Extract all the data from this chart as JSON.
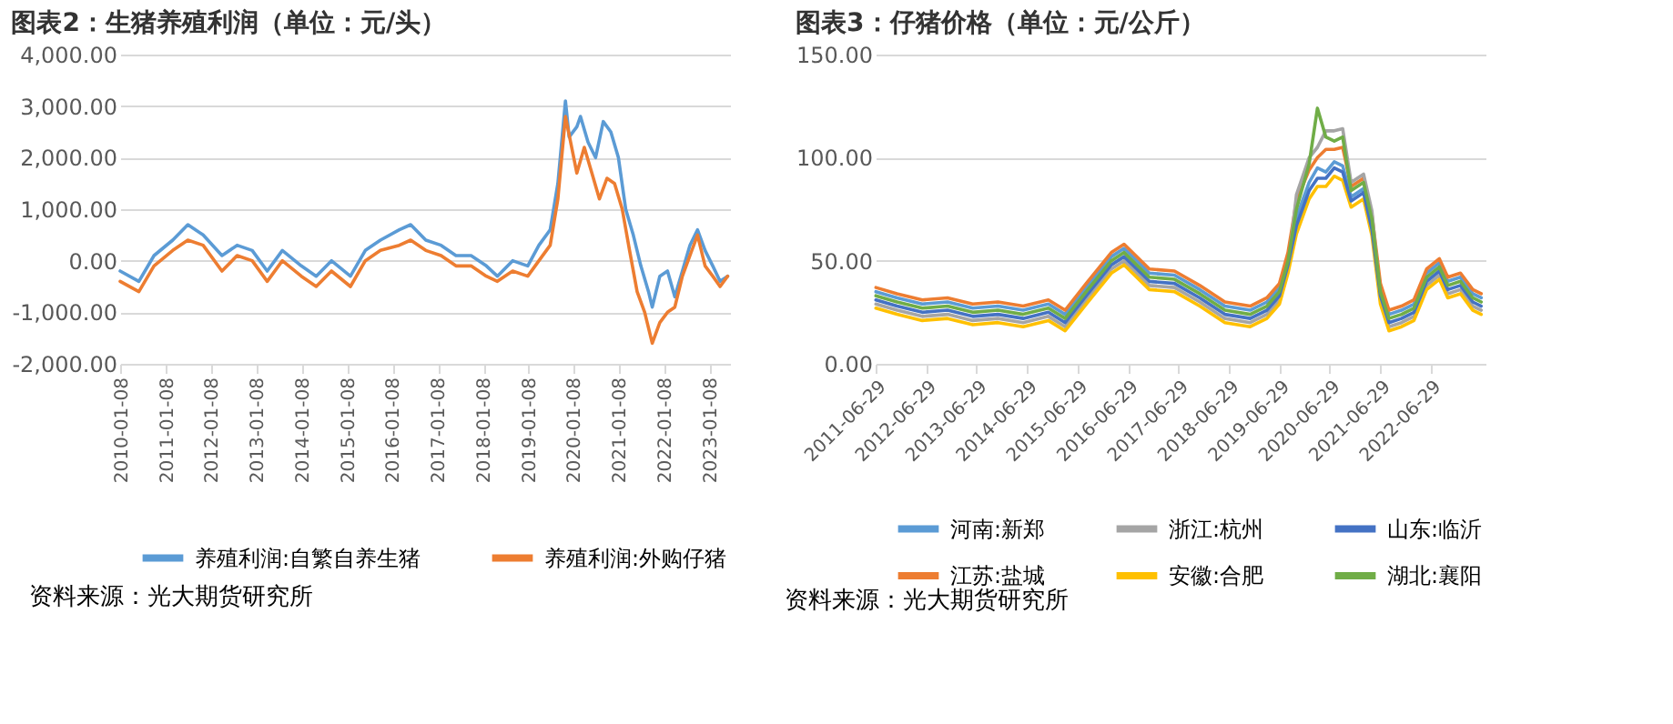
{
  "chart_data": [
    {
      "type": "line",
      "title": "图表2：生猪养殖利润（单位：元/头）",
      "annotations": [
        "资料来源：光大期货研究所"
      ],
      "legend": "bottom",
      "grid": "y",
      "line_style": "solid",
      "xlim": [
        "2010-01-01",
        "2023-06-20"
      ],
      "xticks": [
        "2010-01-08",
        "2011-01-08",
        "2012-01-08",
        "2013-01-08",
        "2014-01-08",
        "2015-01-08",
        "2016-01-08",
        "2017-01-08",
        "2018-01-08",
        "2019-01-08",
        "2020-01-08",
        "2021-01-08",
        "2022-01-08",
        "2023-01-08"
      ],
      "ylim": [
        -2000,
        4000
      ],
      "yticks": [
        {
          "value": -2000,
          "label": "-2,000.00"
        },
        {
          "value": -1000,
          "label": "-1,000.00"
        },
        {
          "value": 0,
          "label": "0.00"
        },
        {
          "value": 1000,
          "label": "1,000.00"
        },
        {
          "value": 2000,
          "label": "2,000.00"
        },
        {
          "value": 3000,
          "label": "3,000.00"
        },
        {
          "value": 4000,
          "label": "4,000.00"
        }
      ],
      "series": [
        {
          "name": "养殖利润:自繁自养生猪",
          "color": "#5b9bd5",
          "x": [
            "2010-01",
            "2010-06",
            "2010-10",
            "2011-03",
            "2011-07",
            "2011-11",
            "2012-04",
            "2012-08",
            "2012-12",
            "2013-04",
            "2013-08",
            "2014-01",
            "2014-05",
            "2014-09",
            "2015-02",
            "2015-06",
            "2015-10",
            "2016-03",
            "2016-06",
            "2016-10",
            "2017-02",
            "2017-06",
            "2017-10",
            "2018-02",
            "2018-05",
            "2018-09",
            "2019-01",
            "2019-04",
            "2019-07",
            "2019-09",
            "2019-11",
            "2019-12",
            "2020-02",
            "2020-03",
            "2020-05",
            "2020-07",
            "2020-09",
            "2020-11",
            "2021-01",
            "2021-03",
            "2021-05",
            "2021-07",
            "2021-09",
            "2021-10",
            "2021-12",
            "2022-02",
            "2022-04",
            "2022-06",
            "2022-08",
            "2022-10",
            "2022-12",
            "2023-02",
            "2023-04",
            "2023-06"
          ],
          "values": [
            -200,
            -400,
            100,
            400,
            700,
            500,
            100,
            300,
            200,
            -200,
            200,
            -100,
            -300,
            0,
            -300,
            200,
            400,
            600,
            700,
            400,
            300,
            100,
            100,
            -100,
            -300,
            0,
            -100,
            300,
            600,
            1500,
            3100,
            2400,
            2600,
            2800,
            2300,
            2000,
            2700,
            2500,
            2000,
            1000,
            500,
            -100,
            -600,
            -900,
            -300,
            -200,
            -700,
            -200,
            300,
            600,
            200,
            -100,
            -400,
            -300
          ]
        },
        {
          "name": "养殖利润:外购仔猪",
          "color": "#ed7d31",
          "x": [
            "2010-01",
            "2010-06",
            "2010-10",
            "2011-03",
            "2011-07",
            "2011-11",
            "2012-04",
            "2012-08",
            "2012-12",
            "2013-04",
            "2013-08",
            "2014-01",
            "2014-05",
            "2014-09",
            "2015-02",
            "2015-06",
            "2015-10",
            "2016-03",
            "2016-06",
            "2016-10",
            "2017-02",
            "2017-06",
            "2017-10",
            "2018-02",
            "2018-05",
            "2018-09",
            "2019-01",
            "2019-04",
            "2019-07",
            "2019-09",
            "2019-11",
            "2020-02",
            "2020-04",
            "2020-06",
            "2020-08",
            "2020-10",
            "2020-12",
            "2021-02",
            "2021-04",
            "2021-06",
            "2021-08",
            "2021-10",
            "2021-12",
            "2022-02",
            "2022-04",
            "2022-06",
            "2022-08",
            "2022-10",
            "2022-12",
            "2023-02",
            "2023-04",
            "2023-06"
          ],
          "values": [
            -400,
            -600,
            -100,
            200,
            400,
            300,
            -200,
            100,
            0,
            -400,
            0,
            -300,
            -500,
            -200,
            -500,
            0,
            200,
            300,
            400,
            200,
            100,
            -100,
            -100,
            -300,
            -400,
            -200,
            -300,
            0,
            300,
            1200,
            2800,
            1700,
            2200,
            1700,
            1200,
            1600,
            1500,
            1000,
            200,
            -600,
            -1000,
            -1600,
            -1200,
            -1000,
            -900,
            -300,
            100,
            500,
            -100,
            -300,
            -500,
            -300
          ]
        }
      ]
    },
    {
      "type": "line",
      "title": "图表3：仔猪价格（单位：元/公斤）",
      "annotations": [
        "资料来源：光大期货研究所"
      ],
      "legend": "bottom",
      "grid": "y",
      "line_style": "solid",
      "xlim": [
        "2011-06-29",
        "2023-08-01"
      ],
      "xticks": [
        "2011-06-29",
        "2012-06-29",
        "2013-06-29",
        "2014-06-29",
        "2015-06-29",
        "2016-06-29",
        "2017-06-29",
        "2018-06-29",
        "2019-06-29",
        "2020-06-29",
        "2021-06-29",
        "2022-06-29"
      ],
      "ylim": [
        0,
        150
      ],
      "yticks": [
        {
          "value": 0,
          "label": "0.00"
        },
        {
          "value": 50,
          "label": "50.00"
        },
        {
          "value": 100,
          "label": "100.00"
        },
        {
          "value": 150,
          "label": "150.00"
        }
      ],
      "x": [
        "2011-07",
        "2011-12",
        "2012-06",
        "2012-12",
        "2013-06",
        "2013-12",
        "2014-06",
        "2014-12",
        "2015-04",
        "2015-09",
        "2016-03",
        "2016-06",
        "2016-12",
        "2017-06",
        "2017-12",
        "2018-06",
        "2018-12",
        "2019-04",
        "2019-07",
        "2019-09",
        "2019-11",
        "2020-02",
        "2020-04",
        "2020-06",
        "2020-08",
        "2020-10",
        "2020-12",
        "2021-03",
        "2021-05",
        "2021-07",
        "2021-09",
        "2021-12",
        "2022-03",
        "2022-06",
        "2022-09",
        "2022-11",
        "2023-02",
        "2023-05",
        "2023-07"
      ],
      "series": [
        {
          "name": "河南:新郑",
          "color": "#5b9bd5",
          "values": [
            35,
            32,
            29,
            30,
            27,
            28,
            26,
            29,
            24,
            37,
            52,
            56,
            44,
            43,
            36,
            28,
            26,
            30,
            37,
            52,
            71,
            88,
            95,
            93,
            98,
            96,
            81,
            85,
            67,
            37,
            24,
            26,
            29,
            44,
            49,
            40,
            42,
            34,
            32
          ]
        },
        {
          "name": "江苏:盐城",
          "color": "#ed7d31",
          "values": [
            37,
            34,
            31,
            32,
            29,
            30,
            28,
            31,
            26,
            39,
            54,
            58,
            46,
            45,
            38,
            30,
            28,
            32,
            39,
            54,
            79,
            94,
            100,
            104,
            104,
            105,
            86,
            90,
            72,
            39,
            26,
            28,
            31,
            46,
            51,
            42,
            44,
            36,
            34
          ]
        },
        {
          "name": "浙江:杭州",
          "color": "#a5a5a5",
          "values": [
            29,
            26,
            23,
            24,
            21,
            22,
            20,
            23,
            18,
            31,
            46,
            50,
            38,
            37,
            30,
            22,
            20,
            24,
            31,
            46,
            82,
            100,
            105,
            113,
            113,
            114,
            88,
            92,
            74,
            31,
            18,
            20,
            23,
            38,
            43,
            34,
            36,
            28,
            26
          ]
        },
        {
          "name": "安徽:合肥",
          "color": "#ffc000",
          "values": [
            27,
            24,
            21,
            22,
            19,
            20,
            18,
            21,
            16,
            29,
            44,
            48,
            36,
            35,
            28,
            20,
            18,
            22,
            29,
            44,
            63,
            80,
            86,
            86,
            91,
            89,
            76,
            80,
            62,
            29,
            16,
            18,
            21,
            36,
            41,
            32,
            34,
            26,
            24
          ]
        },
        {
          "name": "山东:临沂",
          "color": "#4472c4",
          "values": [
            31,
            28,
            25,
            26,
            23,
            24,
            22,
            25,
            20,
            33,
            48,
            52,
            40,
            39,
            32,
            24,
            22,
            26,
            33,
            48,
            67,
            84,
            90,
            90,
            95,
            93,
            79,
            83,
            65,
            33,
            20,
            22,
            25,
            40,
            45,
            36,
            38,
            30,
            28
          ]
        },
        {
          "name": "湖北:襄阳",
          "color": "#70ad47",
          "values": [
            33,
            30,
            27,
            28,
            25,
            26,
            24,
            27,
            22,
            35,
            50,
            54,
            42,
            41,
            34,
            26,
            24,
            28,
            35,
            50,
            75,
            97,
            124,
            110,
            108,
            110,
            84,
            88,
            70,
            35,
            22,
            24,
            27,
            42,
            47,
            38,
            40,
            32,
            30
          ]
        }
      ]
    }
  ]
}
